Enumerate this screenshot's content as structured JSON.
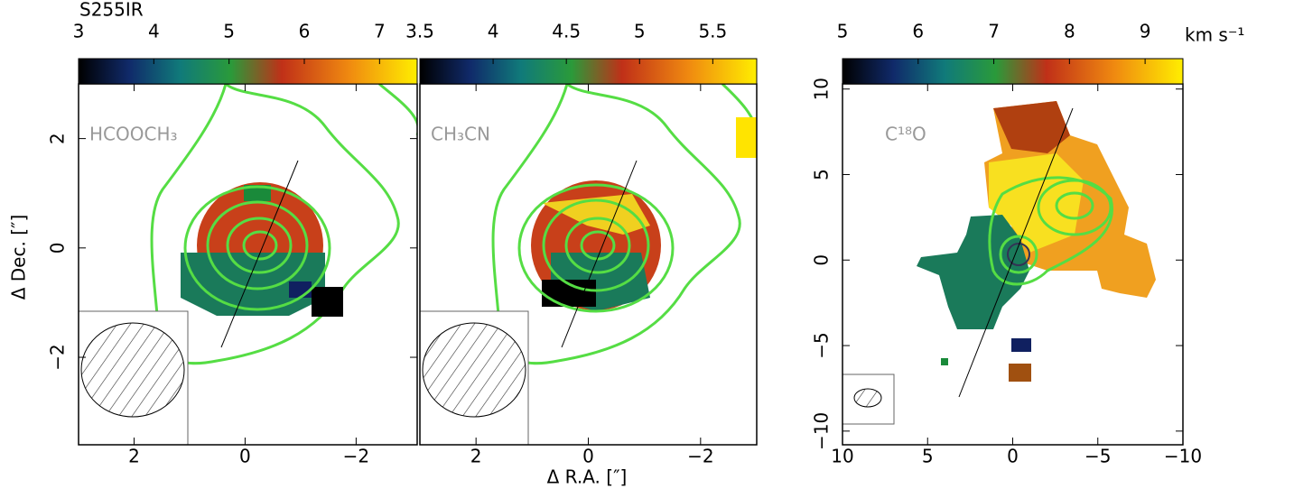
{
  "title": "S255IR",
  "x_label": "Δ R.A. [″]",
  "y_label": "Δ Dec. [″]",
  "colorbar_unit": "km s⁻¹",
  "chart_data": [
    {
      "type": "map",
      "label": "HCOOCH₃",
      "xlim": [
        3.0,
        -3.1
      ],
      "ylim": [
        -3.6,
        3.0
      ],
      "xticks": [
        2,
        0,
        {
          "value": -2,
          "label": "−2"
        }
      ],
      "yticks": [
        {
          "value": -2,
          "label": "−2"
        },
        0,
        2
      ],
      "clim": [
        3,
        7.5
      ],
      "cticks": [
        3,
        4,
        5,
        6,
        7
      ]
    },
    {
      "type": "map",
      "label": "CH₃CN",
      "xlim": [
        3.0,
        -3.0
      ],
      "ylim": [
        -3.6,
        3.0
      ],
      "xticks": [
        2,
        0,
        {
          "value": -2,
          "label": "−2"
        }
      ],
      "clim": [
        3.5,
        5.8
      ],
      "cticks": [
        3.5,
        4,
        4.5,
        5,
        5.5
      ]
    },
    {
      "type": "map",
      "label": "C¹⁸O",
      "xlim": [
        10,
        -10
      ],
      "ylim": [
        -10.8,
        10.3
      ],
      "xticks": [
        10,
        5,
        0,
        {
          "value": -5,
          "label": "−5"
        },
        {
          "value": -10,
          "label": "−10"
        }
      ],
      "yticks": [
        {
          "value": -10,
          "label": "−10"
        },
        {
          "value": -5,
          "label": "−5"
        },
        0,
        5,
        10
      ],
      "clim": [
        5,
        9.5
      ],
      "cticks": [
        5,
        6,
        7,
        8,
        9
      ]
    }
  ]
}
